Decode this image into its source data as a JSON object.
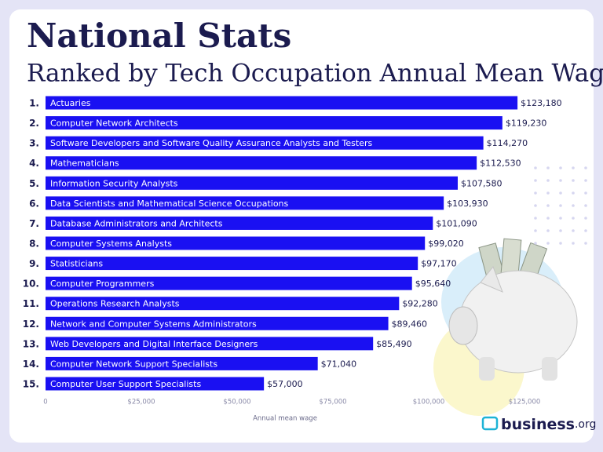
{
  "chart_data": {
    "type": "bar",
    "orientation": "horizontal",
    "title": "National Stats",
    "subtitle": "Ranked by Tech Occupation Annual Mean Wage",
    "ranks": [
      "1.",
      "2.",
      "3.",
      "4.",
      "5.",
      "6.",
      "7.",
      "8.",
      "9.",
      "10.",
      "11.",
      "12.",
      "13.",
      "14.",
      "15."
    ],
    "categories": [
      "Actuaries",
      "Computer Network Architects",
      "Software Developers and Software Quality Assurance Analysts and Testers",
      "Mathematicians",
      "Information Security Analysts",
      "Data Scientists and Mathematical Science Occupations",
      "Database Administrators and Architects",
      "Computer Systems Analysts",
      "Statisticians",
      "Computer Programmers",
      "Operations Research Analysts",
      "Network and Computer Systems Administrators",
      "Web Developers and Digital Interface Designers",
      "Computer Network Support Specialists",
      "Computer User Support Specialists"
    ],
    "values": [
      123180,
      119230,
      114270,
      112530,
      107580,
      103930,
      101090,
      99020,
      97170,
      95640,
      92280,
      89460,
      85490,
      71040,
      57000
    ],
    "value_labels": [
      "$123,180",
      "$119,230",
      "$114,270",
      "$112,530",
      "$107,580",
      "$103,930",
      "$101,090",
      "$99,020",
      "$97,170",
      "$95,640",
      "$92,280",
      "$89,460",
      "$85,490",
      "$71,040",
      "$57,000"
    ],
    "color": "#1a10f2",
    "xlim": [
      0,
      125000
    ],
    "xticks": [
      0,
      {
        "value": 25000,
        "label": "$25,000"
      },
      {
        "value": 50000,
        "label": "$50,000"
      },
      {
        "value": 75000,
        "label": "$75,000"
      },
      {
        "value": 100000,
        "label": "$100,000"
      },
      {
        "value": 125000,
        "label": "$125,000"
      }
    ],
    "xlabel": "Annual mean wage",
    "brand": "business",
    "brand_suffix": ".org"
  }
}
